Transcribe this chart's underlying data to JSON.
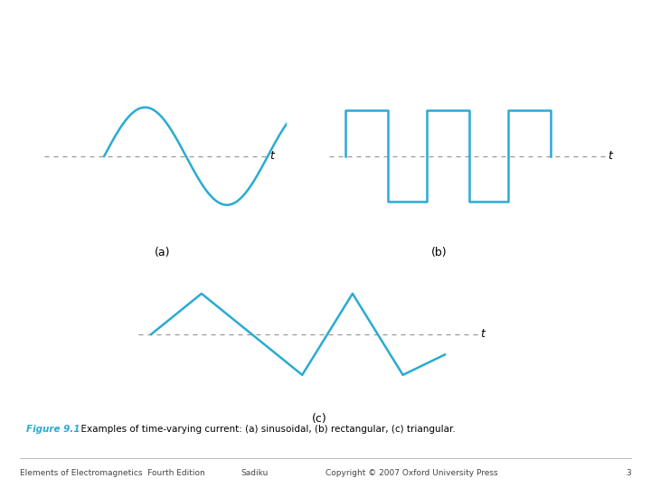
{
  "bg_color": "#ffffff",
  "wave_color": "#29ABD4",
  "dashed_color": "#999999",
  "label_color": "#000000",
  "fig_label_color": "#29ABD4",
  "fig_width": 7.2,
  "fig_height": 5.4,
  "caption_bold": "Figure 9.1",
  "caption_normal": "  Examples of time-varying current: (a) sinusoidal, (b) rectangular, (c) triangular.",
  "footer_left": "Elements of Electromagnetics  Fourth Edition",
  "footer_mid": "Sadiku",
  "footer_right": "Copyright © 2007 Oxford University Press",
  "footer_page": "3",
  "sub_a": "(a)",
  "sub_b": "(b)",
  "sub_c": "(c)",
  "t_label": "t"
}
